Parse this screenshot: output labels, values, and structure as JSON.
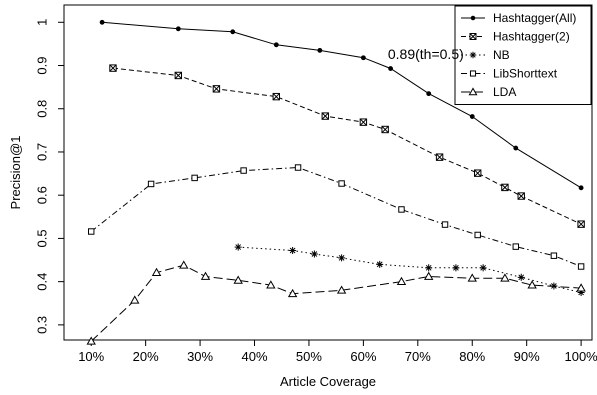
{
  "chart_data": {
    "type": "line",
    "title": "",
    "xlabel": "Article Coverage",
    "ylabel": "Precision@1",
    "xlim": [
      5,
      102
    ],
    "ylim": [
      0.265,
      1.04
    ],
    "x_ticks": [
      10,
      20,
      30,
      40,
      50,
      60,
      70,
      80,
      90,
      100
    ],
    "x_tick_labels": [
      "10%",
      "20%",
      "30%",
      "40%",
      "50%",
      "60%",
      "70%",
      "80%",
      "90%",
      "100%"
    ],
    "y_ticks": [
      0.3,
      0.4,
      0.5,
      0.6,
      0.7,
      0.8,
      0.9,
      1
    ],
    "y_tick_labels": [
      "0.3",
      "0.4",
      "0.5",
      "0.6",
      "0.7",
      "0.8",
      "0.9",
      "1"
    ],
    "grid": false,
    "legend_position": "top-right",
    "annotations": [
      {
        "text": "0.89(th=0.5)",
        "x": 64.5,
        "y": 0.915
      }
    ],
    "series": [
      {
        "name": "Hashtagger(All)",
        "marker": "filled-circle",
        "dash": "solid",
        "x": [
          12,
          26,
          36,
          44,
          52,
          60,
          65,
          72,
          80,
          88,
          100
        ],
        "y": [
          1.0,
          0.985,
          0.978,
          0.948,
          0.935,
          0.918,
          0.893,
          0.835,
          0.782,
          0.709,
          0.617
        ]
      },
      {
        "name": "Hashtagger(2)",
        "marker": "square-x",
        "dash": "dashed",
        "x": [
          14,
          26,
          33,
          44,
          53,
          60,
          64,
          74,
          81,
          86,
          89,
          100
        ],
        "y": [
          0.894,
          0.877,
          0.846,
          0.828,
          0.783,
          0.769,
          0.752,
          0.688,
          0.651,
          0.618,
          0.598,
          0.533
        ]
      },
      {
        "name": "NB",
        "marker": "asterisk",
        "dash": "dotted",
        "x": [
          37,
          47,
          51,
          56,
          63,
          72,
          77,
          82,
          89,
          95,
          100
        ],
        "y": [
          0.48,
          0.472,
          0.464,
          0.455,
          0.44,
          0.432,
          0.432,
          0.432,
          0.41,
          0.39,
          0.375
        ]
      },
      {
        "name": "LibShorttext",
        "marker": "small-square",
        "dash": "dashdot",
        "x": [
          10,
          21,
          29,
          38,
          48,
          56,
          67,
          75,
          81,
          88,
          95,
          100
        ],
        "y": [
          0.516,
          0.626,
          0.64,
          0.657,
          0.664,
          0.627,
          0.567,
          0.532,
          0.508,
          0.481,
          0.46,
          0.435
        ]
      },
      {
        "name": "LDA",
        "marker": "triangle",
        "dash": "longdash",
        "x": [
          10,
          18,
          22,
          27,
          31,
          37,
          43,
          47,
          56,
          67,
          72,
          80,
          86,
          91,
          100
        ],
        "y": [
          0.262,
          0.357,
          0.421,
          0.438,
          0.412,
          0.403,
          0.392,
          0.372,
          0.38,
          0.4,
          0.412,
          0.408,
          0.408,
          0.392,
          0.385
        ]
      }
    ]
  }
}
